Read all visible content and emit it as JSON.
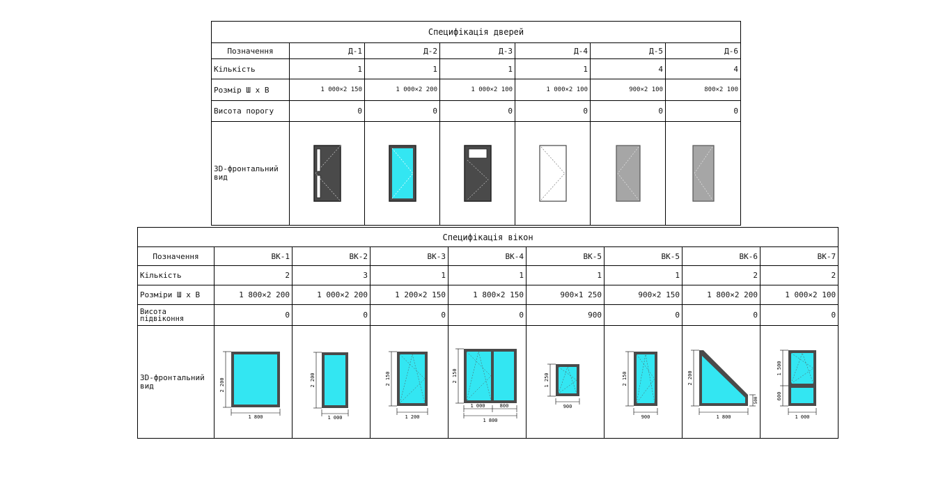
{
  "doors": {
    "title": "Специфікація дверей",
    "row_labels": {
      "designation": "Позначення",
      "quantity": "Кількість",
      "size": "Розмір Ш х В",
      "threshold": "Висота порогу",
      "view": "3D-фронтальний вид"
    },
    "items": [
      {
        "designation": "Д-1",
        "quantity": "1",
        "size": "1 000×2 150",
        "threshold": "0",
        "icon": "door-dark-glass-strips-icon"
      },
      {
        "designation": "Д-2",
        "quantity": "1",
        "size": "1 000×2 200",
        "threshold": "0",
        "icon": "door-glazed-cyan-icon"
      },
      {
        "designation": "Д-3",
        "quantity": "1",
        "size": "1 000×2 100",
        "threshold": "0",
        "icon": "door-dark-with-vent-icon"
      },
      {
        "designation": "Д-4",
        "quantity": "1",
        "size": "1 000×2 100",
        "threshold": "0",
        "icon": "door-white-icon"
      },
      {
        "designation": "Д-5",
        "quantity": "4",
        "size": "900×2 100",
        "threshold": "0",
        "icon": "door-grey-icon"
      },
      {
        "designation": "Д-6",
        "quantity": "4",
        "size": "800×2 100",
        "threshold": "0",
        "icon": "door-grey-narrow-icon"
      }
    ]
  },
  "windows": {
    "title": "Специфікація вікон",
    "row_labels": {
      "designation": "Позначення",
      "quantity": "Кількість",
      "size": "Розміри Ш х В",
      "sill_line1": "Висота",
      "sill_line2": "підвіконня",
      "view": "3D-фронтальний вид"
    },
    "items": [
      {
        "designation": "ВК-1",
        "quantity": "2",
        "size": "1 800×2 200",
        "sill": "0",
        "icon": "window-fixed-icon",
        "dims": [
          "2 200",
          "1 800"
        ]
      },
      {
        "designation": "ВК-2",
        "quantity": "3",
        "size": "1 000×2 200",
        "sill": "0",
        "icon": "window-narrow-fixed-icon",
        "dims": [
          "2 200",
          "1 000"
        ]
      },
      {
        "designation": "ВК-3",
        "quantity": "1",
        "size": "1 200×2 150",
        "sill": "0",
        "icon": "window-tilt-turn-icon",
        "dims": [
          "2 150",
          "1 200"
        ]
      },
      {
        "designation": "ВК-4",
        "quantity": "1",
        "size": "1 800×2 150",
        "sill": "0",
        "icon": "window-double-icon",
        "dims": [
          "2 150",
          "1 000",
          "800",
          "1 800"
        ]
      },
      {
        "designation": "ВК-5",
        "quantity": "1",
        "size": "900×1 250",
        "sill": "900",
        "icon": "window-small-icon",
        "dims": [
          "1 250",
          "900"
        ]
      },
      {
        "designation": "ВК-5",
        "quantity": "1",
        "size": "900×2 150",
        "sill": "0",
        "icon": "window-tall-tilt-icon",
        "dims": [
          "2 150",
          "900"
        ]
      },
      {
        "designation": "ВК-6",
        "quantity": "2",
        "size": "1 800×2 200",
        "sill": "0",
        "icon": "window-trapezoid-icon",
        "dims": [
          "2 200",
          "500",
          "1 800"
        ]
      },
      {
        "designation": "ВК-7",
        "quantity": "2",
        "size": "1 000×2 100",
        "sill": "0",
        "icon": "window-transom-icon",
        "dims": [
          "1 500",
          "600",
          "1 000"
        ]
      }
    ]
  },
  "colors": {
    "glass": "#33e6f2",
    "frame_dark": "#4a4a4a",
    "door_grey": "#a6a6a6",
    "line": "#000000"
  }
}
